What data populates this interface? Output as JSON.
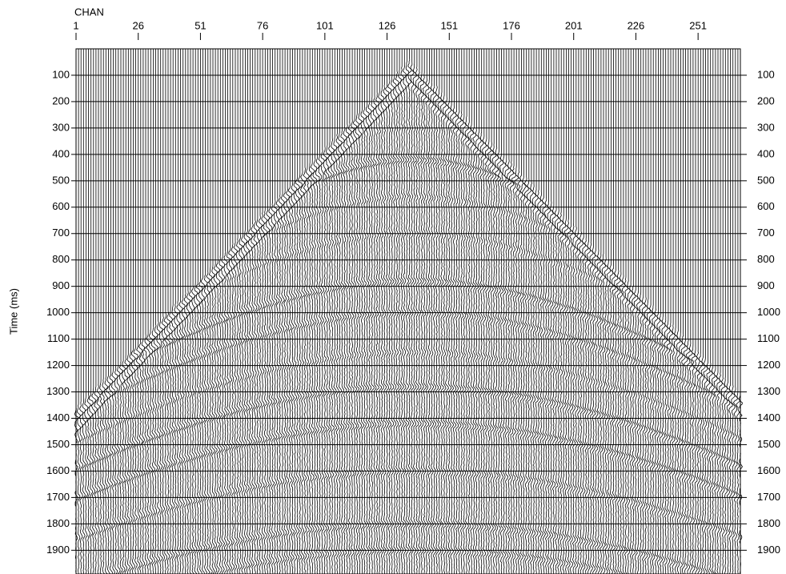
{
  "chart_data": {
    "type": "seismic",
    "x_label": "CHAN",
    "y_label": "Time (ms)",
    "xlim": [
      1,
      268
    ],
    "xticks": [
      1,
      26,
      51,
      76,
      101,
      126,
      151,
      176,
      201,
      226,
      251
    ],
    "ylim": [
      0,
      1990
    ],
    "yticks": [
      100,
      200,
      300,
      400,
      500,
      600,
      700,
      800,
      900,
      1000,
      1100,
      1200,
      1300,
      1400,
      1500,
      1600,
      1700,
      1800,
      1900
    ],
    "grid": true,
    "color": "#000000"
  }
}
